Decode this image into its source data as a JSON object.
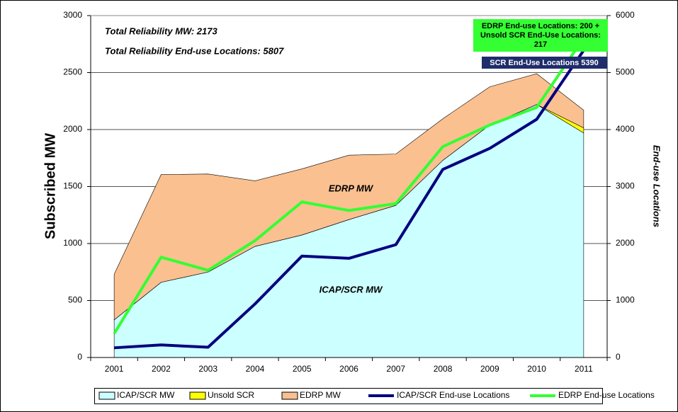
{
  "chart_data": {
    "type": "area",
    "y_label": "Subscribed MW",
    "y2_label": "End-use Locations",
    "annotations": {
      "total_mw": "Total Reliability MW: 2173",
      "total_locations": "Total Reliability End-use Locations: 5807",
      "edrp_area": "EDRP MW",
      "icap_area": "ICAP/SCR MW",
      "edrp_box": [
        "EDRP End-use Locations: 200 +",
        "Unsold SCR End-Use Locations:",
        "217"
      ],
      "scr_box": "SCR End-Use Locations 5390"
    },
    "categories": [
      "2001",
      "2002",
      "2003",
      "2004",
      "2005",
      "2006",
      "2007",
      "2008",
      "2009",
      "2010",
      "2011"
    ],
    "series": [
      {
        "name": "ICAP/SCR MW",
        "type": "area",
        "color": "#ccffff",
        "values": [
          330,
          660,
          750,
          975,
          1075,
          1210,
          1335,
          1730,
          2040,
          2220,
          1970
        ]
      },
      {
        "name": "Unsold SCR",
        "type": "area",
        "color": "#ffff00",
        "values": [
          0,
          0,
          0,
          0,
          0,
          0,
          0,
          0,
          0,
          0,
          45
        ]
      },
      {
        "name": "EDRP MW",
        "type": "area",
        "color": "#fac090",
        "values": [
          400,
          945,
          860,
          575,
          580,
          565,
          450,
          365,
          335,
          270,
          155
        ]
      },
      {
        "name": "ICAP/SCR End-use Locations",
        "type": "line",
        "axis": "y2",
        "color": "#000080",
        "values": [
          170,
          220,
          180,
          940,
          1780,
          1740,
          1980,
          3300,
          3670,
          4180,
          5390
        ]
      },
      {
        "name": "EDRP End-use Locations",
        "type": "line",
        "axis": "y2",
        "color": "#33ff33",
        "values": [
          420,
          1760,
          1530,
          2050,
          2730,
          2580,
          2700,
          3700,
          4080,
          4390,
          5607
        ]
      }
    ],
    "ylim": [
      0,
      3000
    ],
    "yticks": [
      0,
      500,
      1000,
      1500,
      2000,
      2500,
      3000
    ],
    "y2lim": [
      0,
      6000
    ],
    "y2ticks": [
      0,
      1000,
      2000,
      3000,
      4000,
      5000,
      6000
    ],
    "grid": true
  }
}
